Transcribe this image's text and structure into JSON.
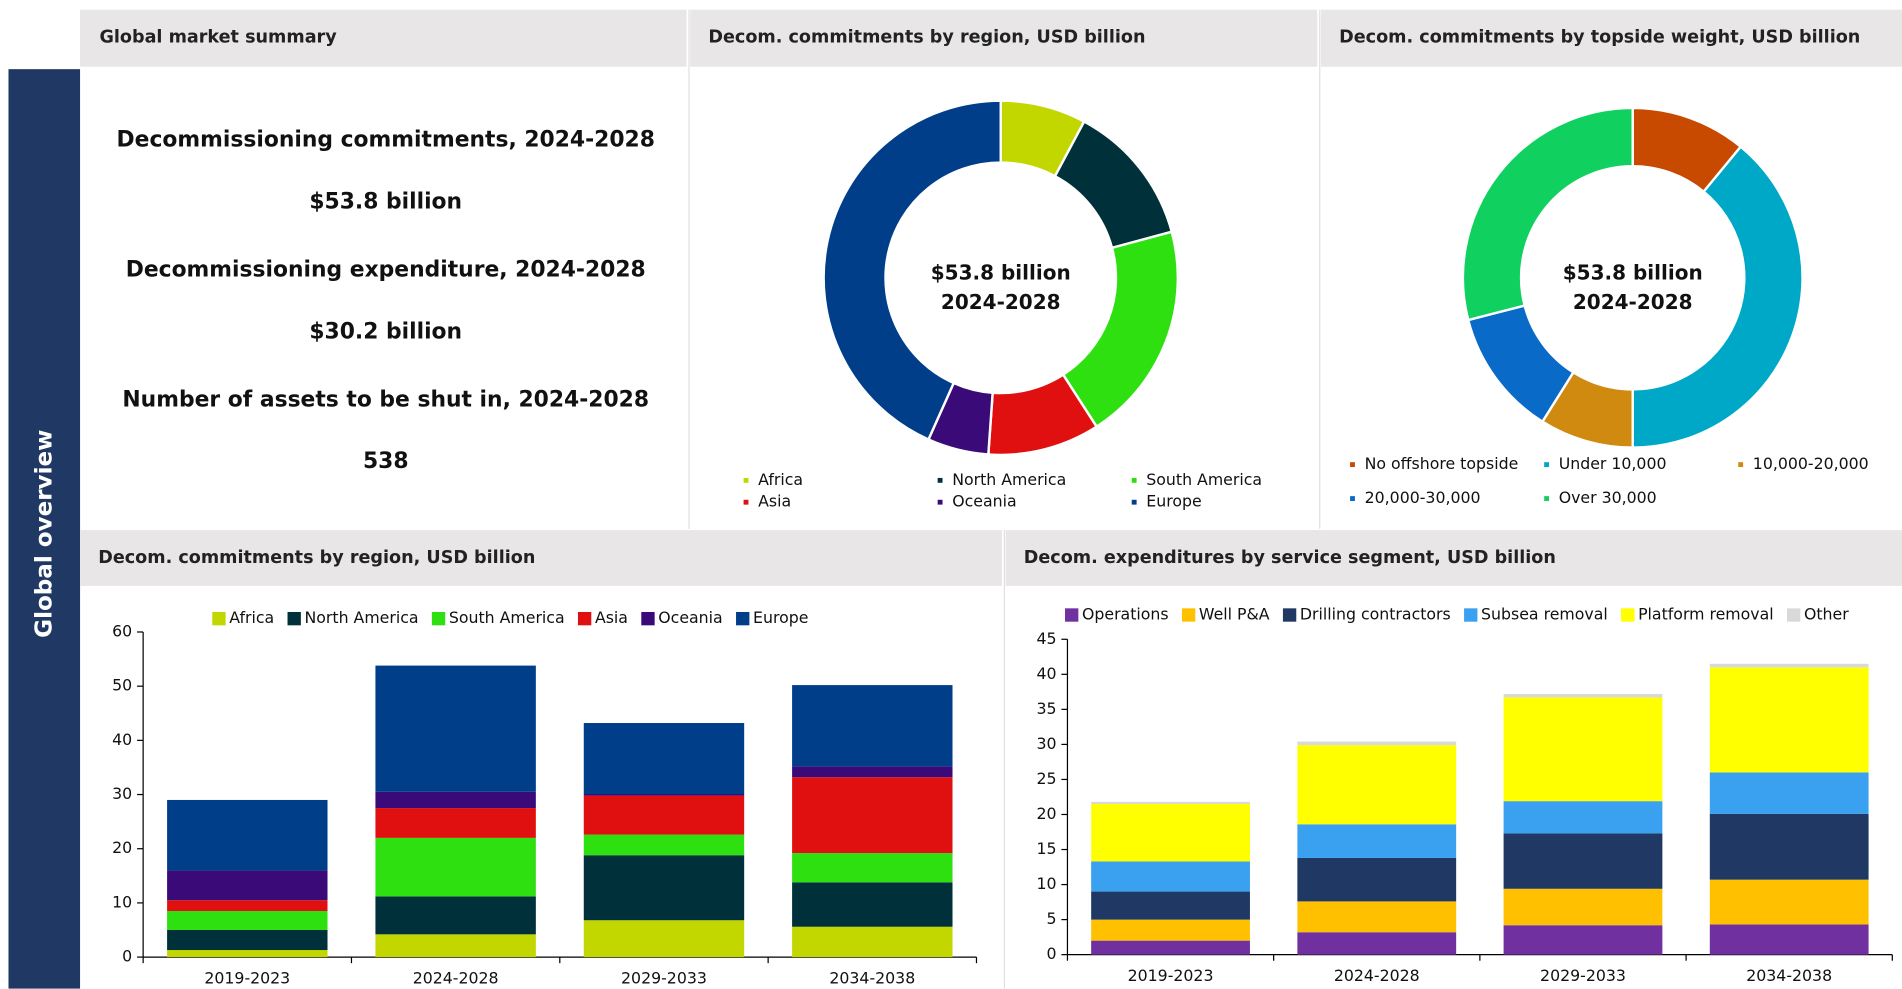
{
  "sidebar": "Global overview",
  "summary": {
    "title": "Global market summary",
    "items": [
      {
        "label": "Decommissioning commitments, 2024-2028",
        "value": "$53.8 billion"
      },
      {
        "label": "Decommissioning expenditure, 2024-2028",
        "value": "$30.2 billion"
      },
      {
        "label": "Number of assets to be shut in, 2024-2028",
        "value": "538"
      }
    ]
  },
  "chart_data": [
    {
      "type": "donut",
      "title": "Decom. commitments by region, USD billion",
      "center_text": "$53.8 billion",
      "center_subtext": "2024-2028",
      "categories": [
        "Africa",
        "North America",
        "South America",
        "Asia",
        "Oceania",
        "Europe"
      ],
      "values": [
        4.2,
        7,
        10.8,
        5.5,
        3,
        23.3
      ],
      "colors": [
        "#c2d600",
        "#00303a",
        "#2ee010",
        "#e01010",
        "#3a0a78",
        "#003e8a"
      ]
    },
    {
      "type": "donut",
      "title": "Decom. commitments by topside weight, USD billion",
      "center_text": "$53.8 billion",
      "center_subtext": "2024-2028",
      "categories": [
        "No offshore topside",
        "Under 10,000",
        "10,000-20,000",
        "20,000-30,000",
        "Over 30,000"
      ],
      "values": [
        5.9,
        21.0,
        4.8,
        6.5,
        15.6
      ],
      "colors": [
        "#c84a00",
        "#00a8c8",
        "#d08a10",
        "#0a6ac8",
        "#10d060"
      ]
    },
    {
      "type": "stacked_bar",
      "title": "Decom. commitments by region, USD billion",
      "categories": [
        "2019-2023",
        "2024-2028",
        "2029-2033",
        "2034-2038"
      ],
      "series": [
        {
          "name": "Africa",
          "color": "#c2d600",
          "values": [
            1.3,
            4.2,
            6.8,
            5.6
          ]
        },
        {
          "name": "North America",
          "color": "#00303a",
          "values": [
            3.7,
            7,
            12,
            8.2
          ]
        },
        {
          "name": "South America",
          "color": "#2ee010",
          "values": [
            3.5,
            10.8,
            3.8,
            5.4
          ]
        },
        {
          "name": "Asia",
          "color": "#e01010",
          "values": [
            2,
            5.5,
            7.2,
            14
          ]
        },
        {
          "name": "Oceania",
          "color": "#3a0a78",
          "values": [
            5.5,
            3,
            0.3,
            2
          ]
        },
        {
          "name": "Europe",
          "color": "#003e8a",
          "values": [
            13,
            23.3,
            13.1,
            15
          ]
        }
      ],
      "ylim": [
        0,
        60
      ],
      "yticks": [
        0,
        10,
        20,
        30,
        40,
        50,
        60
      ]
    },
    {
      "type": "stacked_bar",
      "title": "Decom. expenditures by service segment, USD billion",
      "categories": [
        "2019-2023",
        "2024-2028",
        "2029-2033",
        "2034-2038"
      ],
      "series": [
        {
          "name": "Operations",
          "color": "#7030a0",
          "values": [
            2,
            3.2,
            4.2,
            4.3
          ]
        },
        {
          "name": "Well P&A",
          "color": "#ffc000",
          "values": [
            3,
            4.4,
            5.2,
            6.4
          ]
        },
        {
          "name": "Drilling contractors",
          "color": "#1f3864",
          "values": [
            4,
            6.2,
            7.9,
            9.4
          ]
        },
        {
          "name": "Subsea removal",
          "color": "#3aa0f0",
          "values": [
            4.3,
            4.8,
            4.6,
            5.9
          ]
        },
        {
          "name": "Platform removal",
          "color": "#ffff00",
          "values": [
            8.2,
            11.3,
            14.8,
            15
          ]
        },
        {
          "name": "Other",
          "color": "#d9d9d9",
          "values": [
            0.3,
            0.5,
            0.5,
            0.5
          ]
        }
      ],
      "ylim": [
        0,
        45
      ],
      "yticks": [
        0,
        5,
        10,
        15,
        20,
        25,
        30,
        35,
        40,
        45
      ]
    }
  ]
}
